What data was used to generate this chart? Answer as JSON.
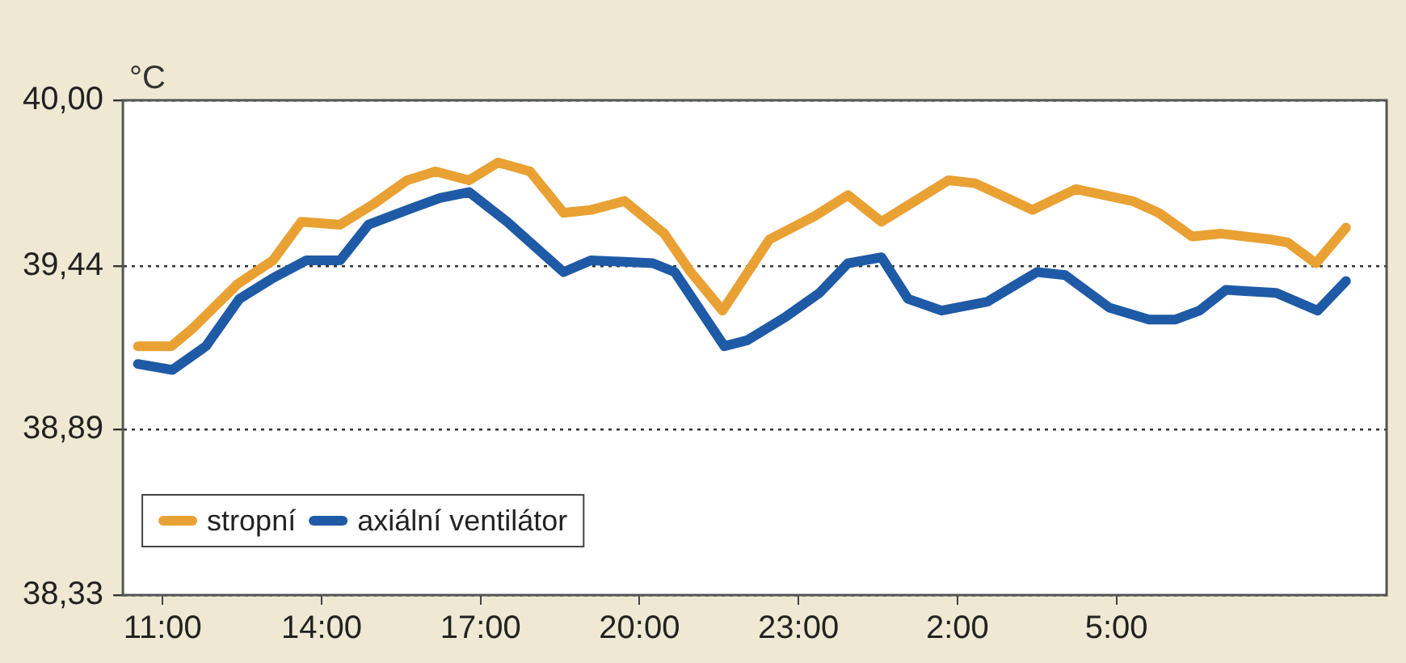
{
  "chart_data": {
    "type": "line",
    "ylabel": "°C",
    "x": [
      "2000-01-01T10:32",
      "2000-01-01T11:10",
      "2000-01-01T11:34",
      "2000-01-01T12:25",
      "2000-01-01T13:05",
      "2000-01-01T13:37",
      "2000-01-01T14:21",
      "2000-01-01T14:59",
      "2000-01-01T15:37",
      "2000-01-01T16:09",
      "2000-01-01T16:47",
      "2000-01-01T17:20",
      "2000-01-01T17:56",
      "2000-01-01T18:34",
      "2000-01-01T19:05",
      "2000-01-01T19:43",
      "2000-01-01T20:28",
      "2000-01-01T20:58",
      "2000-01-01T21:34",
      "2000-01-01T22:27",
      "2000-01-01T23:19",
      "2000-01-01T23:56",
      "2000-01-02T00:34",
      "2000-01-02T01:50",
      "2000-01-02T02:20",
      "2000-01-02T03:25",
      "2000-01-02T04:14",
      "2000-01-02T05:18",
      "2000-01-02T05:48",
      "2000-01-02T06:26",
      "2000-01-02T06:58",
      "2000-01-02T07:55",
      "2000-01-02T08:14",
      "2000-01-02T08:46",
      "2000-01-02T09:20"
    ],
    "series": [
      {
        "name": "stropní",
        "color": "#e9a133",
        "values": [
          39.17,
          39.17,
          39.23,
          39.38,
          39.46,
          39.59,
          39.58,
          39.65,
          39.73,
          39.76,
          39.73,
          39.79,
          39.76,
          39.62,
          39.63,
          39.66,
          39.55,
          39.42,
          39.29,
          39.53,
          39.61,
          39.68,
          39.59,
          39.73,
          39.72,
          39.63,
          39.7,
          39.66,
          39.62,
          39.54,
          39.55,
          39.53,
          39.52,
          39.45,
          39.57
        ]
      },
      {
        "name": "axiální ventilátor",
        "color": "#1f5aa6",
        "x": [
          "2000-01-01T10:32",
          "2000-01-01T11:11",
          "2000-01-01T11:49",
          "2000-01-01T12:27",
          "2000-01-01T13:05",
          "2000-01-01T13:43",
          "2000-01-01T14:21",
          "2000-01-01T14:53",
          "2000-01-01T15:37",
          "2000-01-01T16:14",
          "2000-01-01T16:47",
          "2000-01-01T17:30",
          "2000-01-01T18:34",
          "2000-01-01T19:05",
          "2000-01-01T20:15",
          "2000-01-01T20:40",
          "2000-01-01T21:36",
          "2000-01-01T22:02",
          "2000-01-01T22:46",
          "2000-01-01T23:24",
          "2000-01-01T23:56",
          "2000-01-02T00:34",
          "2000-01-02T01:04",
          "2000-01-02T01:42",
          "2000-01-02T02:34",
          "2000-01-02T03:30",
          "2000-01-02T04:02",
          "2000-01-02T04:52",
          "2000-01-02T05:37",
          "2000-01-02T06:07",
          "2000-01-02T06:34",
          "2000-01-02T07:04",
          "2000-01-02T08:01",
          "2000-01-02T08:48",
          "2000-01-02T09:20"
        ],
        "values": [
          39.11,
          39.09,
          39.17,
          39.33,
          39.4,
          39.46,
          39.46,
          39.58,
          39.63,
          39.67,
          39.69,
          39.59,
          39.42,
          39.46,
          39.45,
          39.42,
          39.17,
          39.19,
          39.27,
          39.35,
          39.45,
          39.47,
          39.33,
          39.29,
          39.32,
          39.42,
          39.41,
          39.3,
          39.26,
          39.26,
          39.29,
          39.36,
          39.35,
          39.29,
          39.39
        ]
      }
    ],
    "xlim": [
      "2000-01-01T10:15",
      "2000-01-02T10:06"
    ],
    "xticks": [
      {
        "value": "2000-01-01T11:00",
        "label": "11:00"
      },
      {
        "value": "2000-01-01T14:00",
        "label": "14:00"
      },
      {
        "value": "2000-01-01T17:00",
        "label": "17:00"
      },
      {
        "value": "2000-01-01T20:00",
        "label": "20:00"
      },
      {
        "value": "2000-01-01T23:00",
        "label": "23:00"
      },
      {
        "value": "2000-01-02T02:00",
        "label": "2:00"
      },
      {
        "value": "2000-01-02T05:00",
        "label": "5:00"
      }
    ],
    "ylim": [
      38.33,
      40.0
    ],
    "yticks": [
      {
        "value": 38.33,
        "label": "38,33"
      },
      {
        "value": 38.89,
        "label": "38,89"
      },
      {
        "value": 39.44,
        "label": "39,44"
      },
      {
        "value": 40.0,
        "label": "40,00"
      }
    ],
    "grid": "y",
    "legend": "bottom left",
    "marker": "none",
    "line_style": "solid"
  }
}
